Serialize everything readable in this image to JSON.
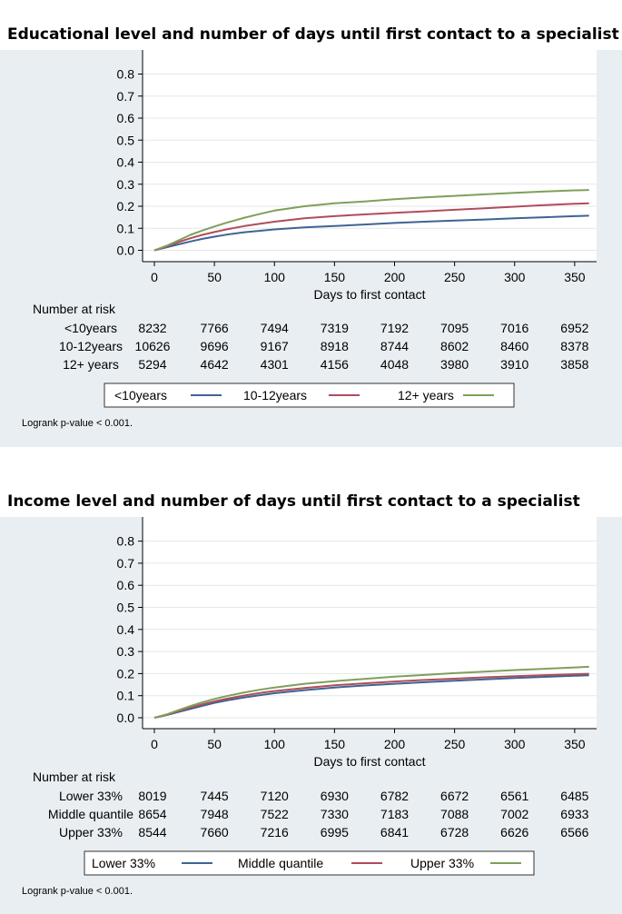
{
  "chart_data": [
    {
      "type": "line",
      "title": "Educational level and number of days until first contact to a specialist",
      "xlabel": "Days to first contact",
      "ylabel": "",
      "xlim": [
        0,
        365
      ],
      "ylim": [
        0,
        0.9
      ],
      "x_ticks": [
        0,
        50,
        100,
        150,
        200,
        250,
        300,
        350
      ],
      "y_ticks": [
        0.0,
        0.1,
        0.2,
        0.3,
        0.4,
        0.5,
        0.6,
        0.7,
        0.8
      ],
      "y_tick_labels": [
        "0.0",
        "0.1",
        "0.2",
        "0.3",
        "0.4",
        "0.5",
        "0.6",
        "0.7",
        "0.8"
      ],
      "grid": true,
      "x": [
        0,
        10,
        20,
        30,
        40,
        50,
        60,
        75,
        90,
        100,
        125,
        150,
        175,
        200,
        225,
        250,
        275,
        300,
        325,
        350,
        362
      ],
      "series": [
        {
          "name": "<10years",
          "color": "#3e6493",
          "values": [
            0,
            0.013,
            0.027,
            0.04,
            0.052,
            0.062,
            0.071,
            0.082,
            0.09,
            0.095,
            0.104,
            0.11,
            0.117,
            0.124,
            0.13,
            0.135,
            0.14,
            0.145,
            0.15,
            0.155,
            0.157
          ]
        },
        {
          "name": "10-12years",
          "color": "#b04c5c",
          "values": [
            0,
            0.017,
            0.037,
            0.055,
            0.07,
            0.083,
            0.095,
            0.11,
            0.122,
            0.13,
            0.145,
            0.155,
            0.163,
            0.17,
            0.177,
            0.184,
            0.191,
            0.198,
            0.205,
            0.211,
            0.213
          ]
        },
        {
          "name": "12+ years",
          "color": "#7ea05a",
          "values": [
            0,
            0.02,
            0.045,
            0.07,
            0.09,
            0.108,
            0.125,
            0.148,
            0.168,
            0.18,
            0.2,
            0.213,
            0.222,
            0.232,
            0.24,
            0.247,
            0.254,
            0.261,
            0.267,
            0.272,
            0.274
          ]
        }
      ],
      "risk_table": {
        "heading": "Number at risk",
        "rows": [
          {
            "label": "<10years",
            "values": [
              "8232",
              "7766",
              "7494",
              "7319",
              "7192",
              "7095",
              "7016",
              "6952"
            ]
          },
          {
            "label": "10-12years",
            "values": [
              "10626",
              "9696",
              "9167",
              "8918",
              "8744",
              "8602",
              "8460",
              "8378"
            ]
          },
          {
            "label": "12+ years",
            "values": [
              "5294",
              "4642",
              "4301",
              "4156",
              "4048",
              "3980",
              "3910",
              "3858"
            ]
          }
        ]
      },
      "legend": [
        "<10years",
        "10-12years",
        "12+ years"
      ],
      "legend_position": "bottom",
      "note": "Logrank p-value < 0.001."
    },
    {
      "type": "line",
      "title": "Income level and number of days until first contact to a specialist",
      "xlabel": "Days to first contact",
      "ylabel": "",
      "xlim": [
        0,
        365
      ],
      "ylim": [
        0,
        0.9
      ],
      "x_ticks": [
        0,
        50,
        100,
        150,
        200,
        250,
        300,
        350
      ],
      "y_ticks": [
        0.0,
        0.1,
        0.2,
        0.3,
        0.4,
        0.5,
        0.6,
        0.7,
        0.8
      ],
      "y_tick_labels": [
        "0.0",
        "0.1",
        "0.2",
        "0.3",
        "0.4",
        "0.5",
        "0.6",
        "0.7",
        "0.8"
      ],
      "grid": true,
      "x": [
        0,
        10,
        20,
        30,
        40,
        50,
        60,
        75,
        90,
        100,
        125,
        150,
        175,
        200,
        225,
        250,
        275,
        300,
        325,
        350,
        362
      ],
      "series": [
        {
          "name": "Lower 33%",
          "color": "#3e6493",
          "values": [
            0,
            0.012,
            0.026,
            0.04,
            0.054,
            0.067,
            0.078,
            0.092,
            0.104,
            0.111,
            0.125,
            0.137,
            0.146,
            0.154,
            0.161,
            0.168,
            0.174,
            0.18,
            0.185,
            0.19,
            0.192
          ]
        },
        {
          "name": "Middle quantile",
          "color": "#b04c5c",
          "values": [
            0,
            0.013,
            0.03,
            0.046,
            0.061,
            0.074,
            0.086,
            0.101,
            0.114,
            0.121,
            0.135,
            0.147,
            0.156,
            0.164,
            0.171,
            0.177,
            0.183,
            0.188,
            0.193,
            0.197,
            0.199
          ]
        },
        {
          "name": "Upper 33%",
          "color": "#7ea05a",
          "values": [
            0,
            0.015,
            0.034,
            0.053,
            0.07,
            0.085,
            0.098,
            0.115,
            0.129,
            0.137,
            0.154,
            0.166,
            0.176,
            0.186,
            0.194,
            0.202,
            0.209,
            0.216,
            0.222,
            0.228,
            0.231
          ]
        }
      ],
      "risk_table": {
        "heading": "Number at risk",
        "rows": [
          {
            "label": "Lower 33%",
            "values": [
              "8019",
              "7445",
              "7120",
              "6930",
              "6782",
              "6672",
              "6561",
              "6485"
            ]
          },
          {
            "label": "Middle quantile",
            "values": [
              "8654",
              "7948",
              "7522",
              "7330",
              "7183",
              "7088",
              "7002",
              "6933"
            ]
          },
          {
            "label": "Upper 33%",
            "values": [
              "8544",
              "7660",
              "7216",
              "6995",
              "6841",
              "6728",
              "6626",
              "6566"
            ]
          }
        ]
      },
      "legend": [
        "Lower 33%",
        "Middle quantile",
        "Upper 33%"
      ],
      "legend_position": "bottom",
      "note": "Logrank p-value < 0.001."
    }
  ]
}
